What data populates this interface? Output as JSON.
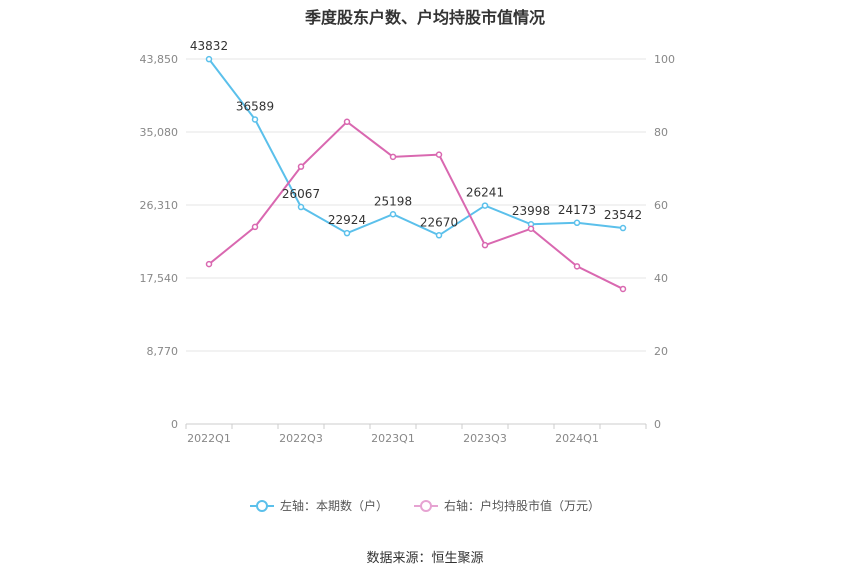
{
  "chart_data": {
    "type": "line",
    "title": "季度股东户数、户均持股市值情况",
    "categories": [
      "2022Q1",
      "2022Q2",
      "2022Q3",
      "2022Q4",
      "2023Q1",
      "2023Q2",
      "2023Q3",
      "2023Q4",
      "2024Q1",
      "2024Q2"
    ],
    "x_tick_labels": [
      "2022Q1",
      "",
      "2022Q3",
      "",
      "2023Q1",
      "",
      "2023Q3",
      "",
      "2024Q1",
      ""
    ],
    "left_axis": {
      "ticks": [
        "0",
        "8,770",
        "17,540",
        "26,310",
        "35,080",
        "43,850"
      ],
      "ylim": [
        0,
        43850
      ]
    },
    "right_axis": {
      "ticks": [
        "0",
        "20",
        "40",
        "60",
        "80",
        "100"
      ],
      "ylim": [
        0,
        100
      ]
    },
    "series": [
      {
        "name": "左轴：本期数（户）",
        "axis": "left",
        "color": "#5bc0eb",
        "values": [
          43832,
          36589,
          26067,
          22924,
          25198,
          22670,
          26241,
          23998,
          24173,
          23542
        ],
        "labels": [
          "43832",
          "36589",
          "26067",
          "22924",
          "25198",
          "22670",
          "26241",
          "23998",
          "24173",
          "23542"
        ]
      },
      {
        "name": "右轴：户均持股市值（万元）",
        "axis": "right",
        "color": "#d968b0",
        "values": [
          43.8,
          54.0,
          70.5,
          82.8,
          73.2,
          73.8,
          49.0,
          53.5,
          43.2,
          37.0
        ]
      }
    ],
    "grid": true,
    "legend_position": "bottom"
  },
  "legend": {
    "left_label": "左轴：本期数（户）",
    "right_label": "右轴：户均持股市值（万元）"
  },
  "source": "数据来源：恒生聚源"
}
